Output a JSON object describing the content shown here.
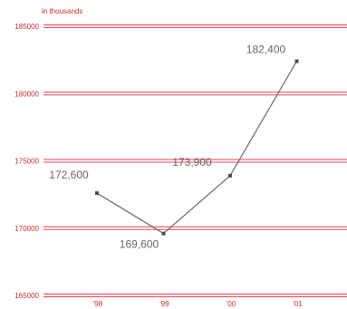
{
  "chart_data": {
    "type": "line",
    "unit_label": "in thousands",
    "categories": [
      "'98",
      "'99",
      "'00",
      "'01"
    ],
    "series": [
      {
        "values": [
          172.6,
          169.6,
          173.9,
          182.4
        ],
        "data_labels": [
          "172,600",
          "169,600",
          "173,900",
          "182,400"
        ]
      }
    ],
    "y_ticks": [
      165000,
      170000,
      175000,
      180000,
      185000
    ],
    "y_tick_labels": [
      "165000",
      "170000",
      "175000",
      "180000",
      "185000"
    ],
    "ylim": [
      165000,
      185000
    ],
    "grid": true,
    "legend": "none"
  },
  "colors": {
    "grid": "#e8474f",
    "axis_text": "#cc2b2b",
    "line": "#6b6b6b",
    "marker": "#4a4a4a",
    "data_label": "#666666"
  }
}
